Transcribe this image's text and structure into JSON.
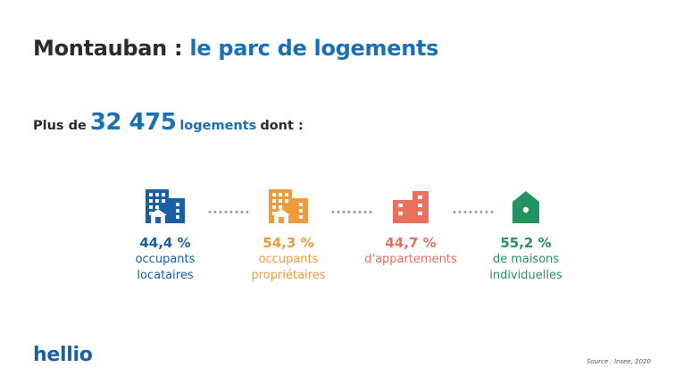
{
  "title": {
    "place": "Montauban :",
    "rest": "le parc de logements"
  },
  "summary": {
    "prefix": "Plus de",
    "number": "32 475",
    "unit": "logements",
    "suffix": "dont :"
  },
  "stats": [
    {
      "icon": "apartment-building-icon",
      "percent": "44,4 %",
      "line1": "occupants",
      "line2": "locataires",
      "color": "#1a5fa6"
    },
    {
      "icon": "apartment-building-icon",
      "percent": "54,3 %",
      "line1": "occupants",
      "line2": "propriétaires",
      "color": "#ef9a3c"
    },
    {
      "icon": "apartment-icon",
      "percent": "44,7 %",
      "line1": "d'appartements",
      "line2": "",
      "color": "#ec6f5e"
    },
    {
      "icon": "house-icon",
      "percent": "55,2 %",
      "line1": "de maisons",
      "line2": "individuelles",
      "color": "#23935f"
    }
  ],
  "brand": "hellio",
  "source": "Source : Insee, 2020"
}
